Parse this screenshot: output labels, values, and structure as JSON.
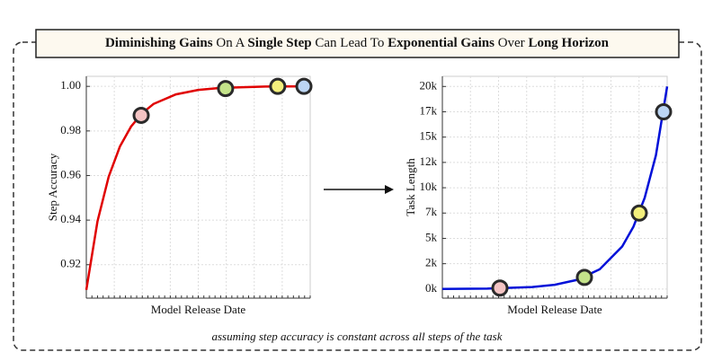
{
  "title_parts": [
    {
      "text": "Diminishing Gains",
      "bold": true
    },
    {
      "text": " On A ",
      "bold": false
    },
    {
      "text": "Single Step",
      "bold": true
    },
    {
      "text": " Can Lead To ",
      "bold": false
    },
    {
      "text": "Exponential Gains",
      "bold": true
    },
    {
      "text": " Over ",
      "bold": false
    },
    {
      "text": "Long Horizon",
      "bold": true
    }
  ],
  "caption": "assuming step accuracy is constant across all steps of the task",
  "chart_data": [
    {
      "type": "line",
      "x_label": "Model Release Date",
      "y_label": "Step Accuracy",
      "xlim": [
        0,
        1
      ],
      "ylim": [
        0.905,
        1.0045
      ],
      "yticks": [
        0.92,
        0.94,
        0.96,
        0.98,
        {
          "value": 1.0,
          "label": "1.00"
        }
      ],
      "grid": true,
      "series": [
        {
          "color": "#e00000",
          "x": [
            0,
            0.05,
            0.1,
            0.15,
            0.2,
            0.25,
            0.3,
            0.4,
            0.5,
            0.6,
            0.8,
            1.0
          ],
          "values": [
            0.9087,
            0.9395,
            0.9595,
            0.973,
            0.982,
            0.988,
            0.9921,
            0.9964,
            0.9984,
            0.9993,
            0.9999,
            1.0
          ]
        }
      ],
      "markers": {
        "x": [
          0.245,
          0.622,
          0.855,
          0.972
        ],
        "values": [
          0.987,
          0.999,
          1.0,
          1.0
        ],
        "colors": [
          "#f4c4c4",
          "#c4e38a",
          "#f3ef7c",
          "#bcd5f3"
        ]
      }
    },
    {
      "type": "line",
      "x_label": "Model Release Date",
      "y_label": "Task Length",
      "xlim": [
        0,
        1
      ],
      "ylim": [
        -900,
        21000
      ],
      "yticks": [
        {
          "value": 0,
          "label": "0k"
        },
        {
          "value": 2500,
          "label": "2k"
        },
        {
          "value": 5000,
          "label": "5k"
        },
        {
          "value": 7500,
          "label": "7k"
        },
        {
          "value": 10000,
          "label": "10k"
        },
        {
          "value": 12500,
          "label": "12k"
        },
        {
          "value": 15000,
          "label": "15k"
        },
        {
          "value": 17500,
          "label": "17k"
        },
        {
          "value": 20000,
          "label": "20k"
        }
      ],
      "grid": true,
      "series": [
        {
          "color": "#0010d8",
          "x": [
            0,
            0.2,
            0.4,
            0.5,
            0.6,
            0.7,
            0.8,
            0.85,
            0.9,
            0.95,
            1.0
          ],
          "values": [
            9,
            42,
            196,
            420,
            905,
            1950,
            4200,
            6150,
            9000,
            13200,
            20000
          ]
        }
      ],
      "markers": {
        "x": [
          0.256,
          0.632,
          0.876,
          0.984
        ],
        "values": [
          100,
          1150,
          7500,
          17500
        ],
        "colors": [
          "#f4c4c4",
          "#c4e38a",
          "#f3ef7c",
          "#bcd5f3"
        ]
      }
    }
  ]
}
